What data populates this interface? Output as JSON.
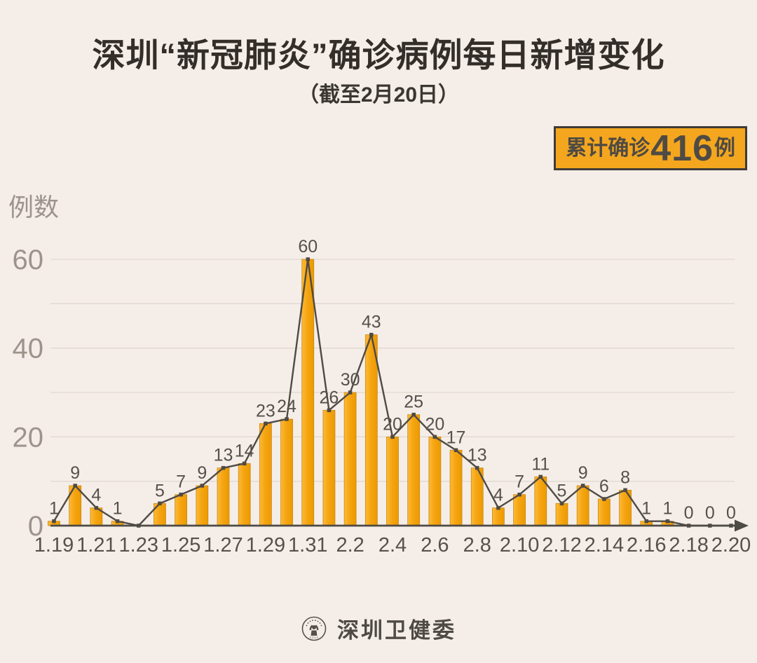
{
  "page": {
    "title": "深圳“新冠肺炎”确诊病例每日新增变化",
    "subtitle": "（截至2月20日）"
  },
  "badge": {
    "label": "累计确诊",
    "value": "416",
    "suffix": "例"
  },
  "footer": {
    "org": "深圳卫健委",
    "logo": "shenzhen-health-commission-seal"
  },
  "colors": {
    "background": "#F5EEE8",
    "bar_fill": "#F5A512",
    "bar_fill_light": "#FDBA35",
    "bar_fill_dark": "#EC9A00",
    "bar_edge": "#C9881B",
    "line": "#4E4A45",
    "marker": "#4E4A45",
    "axis": "#4E4A45",
    "gridline": "#E0D8D0",
    "value_label_text": "#55504B",
    "x_tick_text": "#56514B",
    "y_tick_text": "#9C948C",
    "badge_bg": "#F4A71E",
    "badge_border": "#3F3B37",
    "title_text": "#332E2A"
  },
  "chart_data": {
    "type": "bar",
    "subtype": "bar-with-line-overlay",
    "title": "深圳“新冠肺炎”确诊病例每日新增变化（截至2月20日）",
    "xlabel": "",
    "ylabel": "例数",
    "categories": [
      "1.19",
      "1.20",
      "1.21",
      "1.22",
      "1.23",
      "1.24",
      "1.25",
      "1.26",
      "1.27",
      "1.28",
      "1.29",
      "1.30",
      "1.31",
      "2.1",
      "2.2",
      "2.3",
      "2.4",
      "2.5",
      "2.6",
      "2.7",
      "2.8",
      "2.9",
      "2.10",
      "2.11",
      "2.12",
      "2.13",
      "2.14",
      "2.15",
      "2.16",
      "2.17",
      "2.18",
      "2.19",
      "2.20"
    ],
    "values": [
      1,
      9,
      4,
      1,
      0,
      5,
      7,
      9,
      13,
      14,
      23,
      24,
      60,
      26,
      30,
      43,
      20,
      25,
      20,
      17,
      13,
      4,
      7,
      11,
      5,
      9,
      6,
      8,
      1,
      1,
      0,
      0,
      0
    ],
    "x_tick_labels": [
      "1.19",
      "1.21",
      "1.23",
      "1.25",
      "1.27",
      "1.29",
      "1.31",
      "2.2",
      "2.4",
      "2.6",
      "2.8",
      "2.10",
      "2.12",
      "2.14",
      "2.16",
      "2.18",
      "2.20"
    ],
    "x_tick_every": 2,
    "yticks": [
      0,
      20,
      40,
      60
    ],
    "ylim": [
      0,
      60
    ],
    "gridline_step": 10,
    "grid": true,
    "legend": false,
    "zero_label_indices": [
      30,
      31,
      32
    ],
    "cumulative_total": 416
  }
}
